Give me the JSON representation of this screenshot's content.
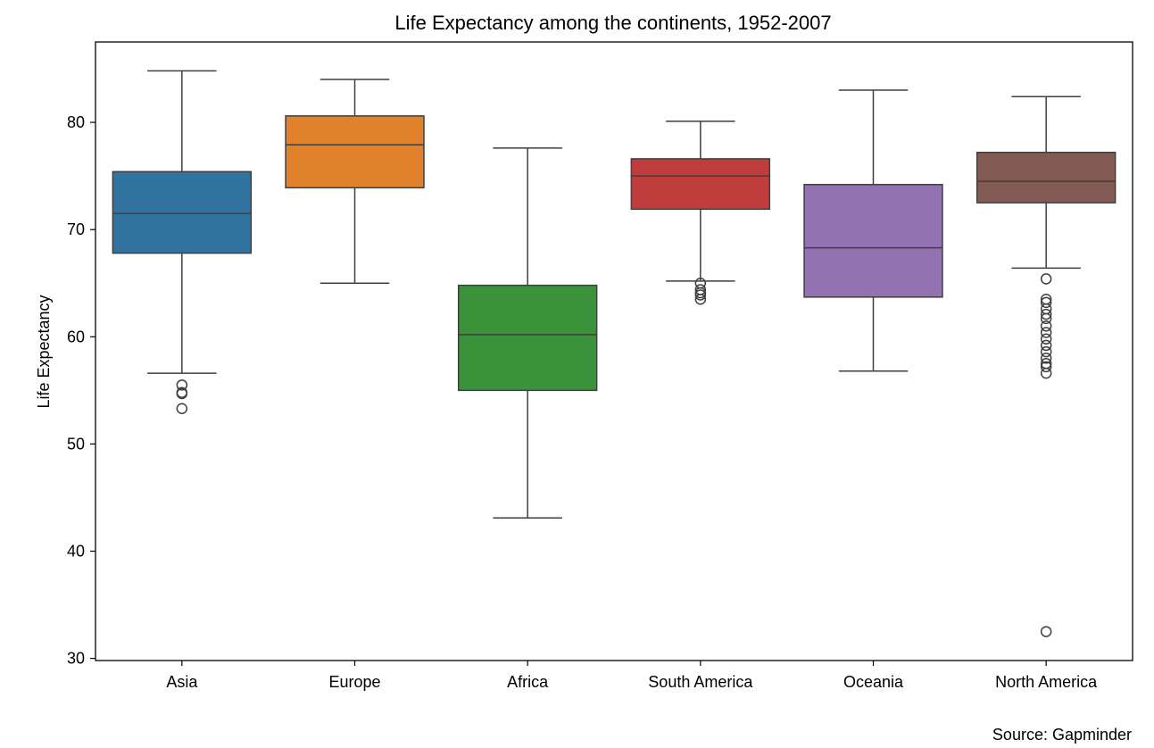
{
  "chart_data": {
    "type": "box",
    "title": "Life Expectancy among the continents, 1952-2007",
    "xlabel": "",
    "ylabel": "Life Expectancy",
    "ylim": [
      29.8,
      87.5
    ],
    "yticks": [
      30,
      40,
      50,
      60,
      70,
      80
    ],
    "grid": false,
    "source": "Source: Gapminder",
    "categories": [
      "Asia",
      "Europe",
      "Africa",
      "South America",
      "Oceania",
      "North America"
    ],
    "boxes": [
      {
        "category": "Asia",
        "whisker_low": 56.6,
        "q1": 67.8,
        "median": 71.5,
        "q3": 75.4,
        "whisker_high": 84.8,
        "outliers": [
          55.5,
          54.8,
          54.7,
          53.3
        ],
        "color": "#3274a1"
      },
      {
        "category": "Europe",
        "whisker_low": 65.0,
        "q1": 73.9,
        "median": 77.9,
        "q3": 80.6,
        "whisker_high": 84.0,
        "outliers": [],
        "color": "#e1812c"
      },
      {
        "category": "Africa",
        "whisker_low": 43.1,
        "q1": 55.0,
        "median": 60.2,
        "q3": 64.8,
        "whisker_high": 77.6,
        "outliers": [],
        "color": "#3a923a"
      },
      {
        "category": "South America",
        "whisker_low": 65.2,
        "q1": 71.9,
        "median": 75.0,
        "q3": 76.6,
        "whisker_high": 80.1,
        "outliers": [
          65.0,
          64.4,
          64.1,
          63.9,
          63.5
        ],
        "color": "#c03d3e"
      },
      {
        "category": "Oceania",
        "whisker_low": 56.8,
        "q1": 63.7,
        "median": 68.3,
        "q3": 74.2,
        "whisker_high": 83.0,
        "outliers": [],
        "color": "#9372b2"
      },
      {
        "category": "North America",
        "whisker_low": 66.4,
        "q1": 72.5,
        "median": 74.5,
        "q3": 77.2,
        "whisker_high": 82.4,
        "outliers": [
          65.4,
          63.5,
          63.2,
          62.6,
          62.1,
          61.7,
          61.0,
          60.4,
          59.8,
          59.2,
          58.6,
          58.0,
          57.5,
          57.2,
          56.6,
          32.5
        ],
        "color": "#845b53"
      }
    ]
  }
}
